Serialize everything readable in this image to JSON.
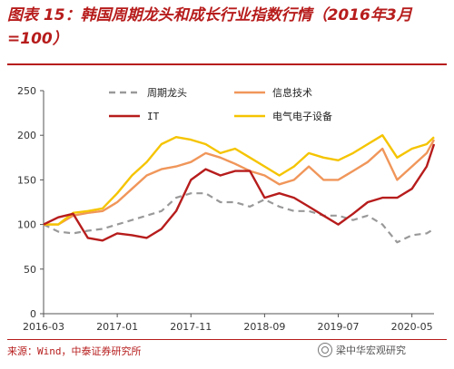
{
  "title": "图表 15：韩国周期龙头和成长行业指数行情（2016年3月=100）",
  "source": "来源：Wind，中泰证券研究所",
  "watermark": "梁中华宏观研究",
  "chart_data": {
    "type": "line",
    "title": "图表 15：韩国周期龙头和成长行业指数行情（2016年3月=100）",
    "xlabel": "",
    "ylabel": "",
    "ylim": [
      0,
      250
    ],
    "yticks": [
      0,
      50,
      100,
      150,
      200,
      250
    ],
    "xrange": [
      "2016-03",
      "2020-08"
    ],
    "xticks": [
      "2016-03",
      "2017-01",
      "2017-11",
      "2018-09",
      "2019-07",
      "2020-05"
    ],
    "grid": false,
    "legend": "top",
    "series": [
      {
        "name": "周期龙头",
        "color": "#999999",
        "dash": "dashed",
        "data": [
          [
            "2016-03",
            100
          ],
          [
            "2016-05",
            92
          ],
          [
            "2016-07",
            90
          ],
          [
            "2016-09",
            93
          ],
          [
            "2016-11",
            95
          ],
          [
            "2017-01",
            100
          ],
          [
            "2017-03",
            105
          ],
          [
            "2017-05",
            110
          ],
          [
            "2017-07",
            115
          ],
          [
            "2017-09",
            130
          ],
          [
            "2017-11",
            135
          ],
          [
            "2018-01",
            135
          ],
          [
            "2018-03",
            125
          ],
          [
            "2018-05",
            125
          ],
          [
            "2018-07",
            120
          ],
          [
            "2018-09",
            128
          ],
          [
            "2018-11",
            120
          ],
          [
            "2019-01",
            115
          ],
          [
            "2019-03",
            115
          ],
          [
            "2019-05",
            110
          ],
          [
            "2019-07",
            110
          ],
          [
            "2019-09",
            105
          ],
          [
            "2019-11",
            110
          ],
          [
            "2020-01",
            100
          ],
          [
            "2020-03",
            80
          ],
          [
            "2020-05",
            88
          ],
          [
            "2020-07",
            90
          ],
          [
            "2020-08",
            95
          ]
        ]
      },
      {
        "name": "信息技术",
        "color": "#f0965a",
        "dash": "solid",
        "data": [
          [
            "2016-03",
            100
          ],
          [
            "2016-05",
            100
          ],
          [
            "2016-07",
            110
          ],
          [
            "2016-09",
            113
          ],
          [
            "2016-11",
            115
          ],
          [
            "2017-01",
            125
          ],
          [
            "2017-03",
            140
          ],
          [
            "2017-05",
            155
          ],
          [
            "2017-07",
            162
          ],
          [
            "2017-09",
            165
          ],
          [
            "2017-11",
            170
          ],
          [
            "2018-01",
            180
          ],
          [
            "2018-03",
            175
          ],
          [
            "2018-05",
            168
          ],
          [
            "2018-07",
            160
          ],
          [
            "2018-09",
            155
          ],
          [
            "2018-11",
            145
          ],
          [
            "2019-01",
            150
          ],
          [
            "2019-03",
            165
          ],
          [
            "2019-05",
            150
          ],
          [
            "2019-07",
            150
          ],
          [
            "2019-09",
            160
          ],
          [
            "2019-11",
            170
          ],
          [
            "2020-01",
            185
          ],
          [
            "2020-03",
            150
          ],
          [
            "2020-05",
            165
          ],
          [
            "2020-07",
            180
          ],
          [
            "2020-08",
            195
          ]
        ]
      },
      {
        "name": "IT",
        "color": "#b71c1c",
        "dash": "solid",
        "data": [
          [
            "2016-03",
            100
          ],
          [
            "2016-05",
            108
          ],
          [
            "2016-07",
            112
          ],
          [
            "2016-09",
            85
          ],
          [
            "2016-11",
            82
          ],
          [
            "2017-01",
            90
          ],
          [
            "2017-03",
            88
          ],
          [
            "2017-05",
            85
          ],
          [
            "2017-07",
            95
          ],
          [
            "2017-09",
            115
          ],
          [
            "2017-11",
            150
          ],
          [
            "2018-01",
            162
          ],
          [
            "2018-03",
            155
          ],
          [
            "2018-05",
            160
          ],
          [
            "2018-07",
            160
          ],
          [
            "2018-09",
            130
          ],
          [
            "2018-11",
            135
          ],
          [
            "2019-01",
            130
          ],
          [
            "2019-03",
            120
          ],
          [
            "2019-05",
            110
          ],
          [
            "2019-07",
            100
          ],
          [
            "2019-09",
            112
          ],
          [
            "2019-11",
            125
          ],
          [
            "2020-01",
            130
          ],
          [
            "2020-03",
            130
          ],
          [
            "2020-05",
            140
          ],
          [
            "2020-07",
            165
          ],
          [
            "2020-08",
            190
          ]
        ]
      },
      {
        "name": "电气电子设备",
        "color": "#f5c400",
        "dash": "solid",
        "data": [
          [
            "2016-03",
            100
          ],
          [
            "2016-05",
            100
          ],
          [
            "2016-07",
            113
          ],
          [
            "2016-09",
            115
          ],
          [
            "2016-11",
            118
          ],
          [
            "2017-01",
            135
          ],
          [
            "2017-03",
            155
          ],
          [
            "2017-05",
            170
          ],
          [
            "2017-07",
            190
          ],
          [
            "2017-09",
            198
          ],
          [
            "2017-11",
            195
          ],
          [
            "2018-01",
            190
          ],
          [
            "2018-03",
            180
          ],
          [
            "2018-05",
            185
          ],
          [
            "2018-07",
            175
          ],
          [
            "2018-09",
            165
          ],
          [
            "2018-11",
            155
          ],
          [
            "2019-01",
            165
          ],
          [
            "2019-03",
            180
          ],
          [
            "2019-05",
            175
          ],
          [
            "2019-07",
            172
          ],
          [
            "2019-09",
            180
          ],
          [
            "2019-11",
            190
          ],
          [
            "2020-01",
            200
          ],
          [
            "2020-03",
            175
          ],
          [
            "2020-05",
            185
          ],
          [
            "2020-07",
            190
          ],
          [
            "2020-08",
            198
          ]
        ]
      }
    ]
  }
}
